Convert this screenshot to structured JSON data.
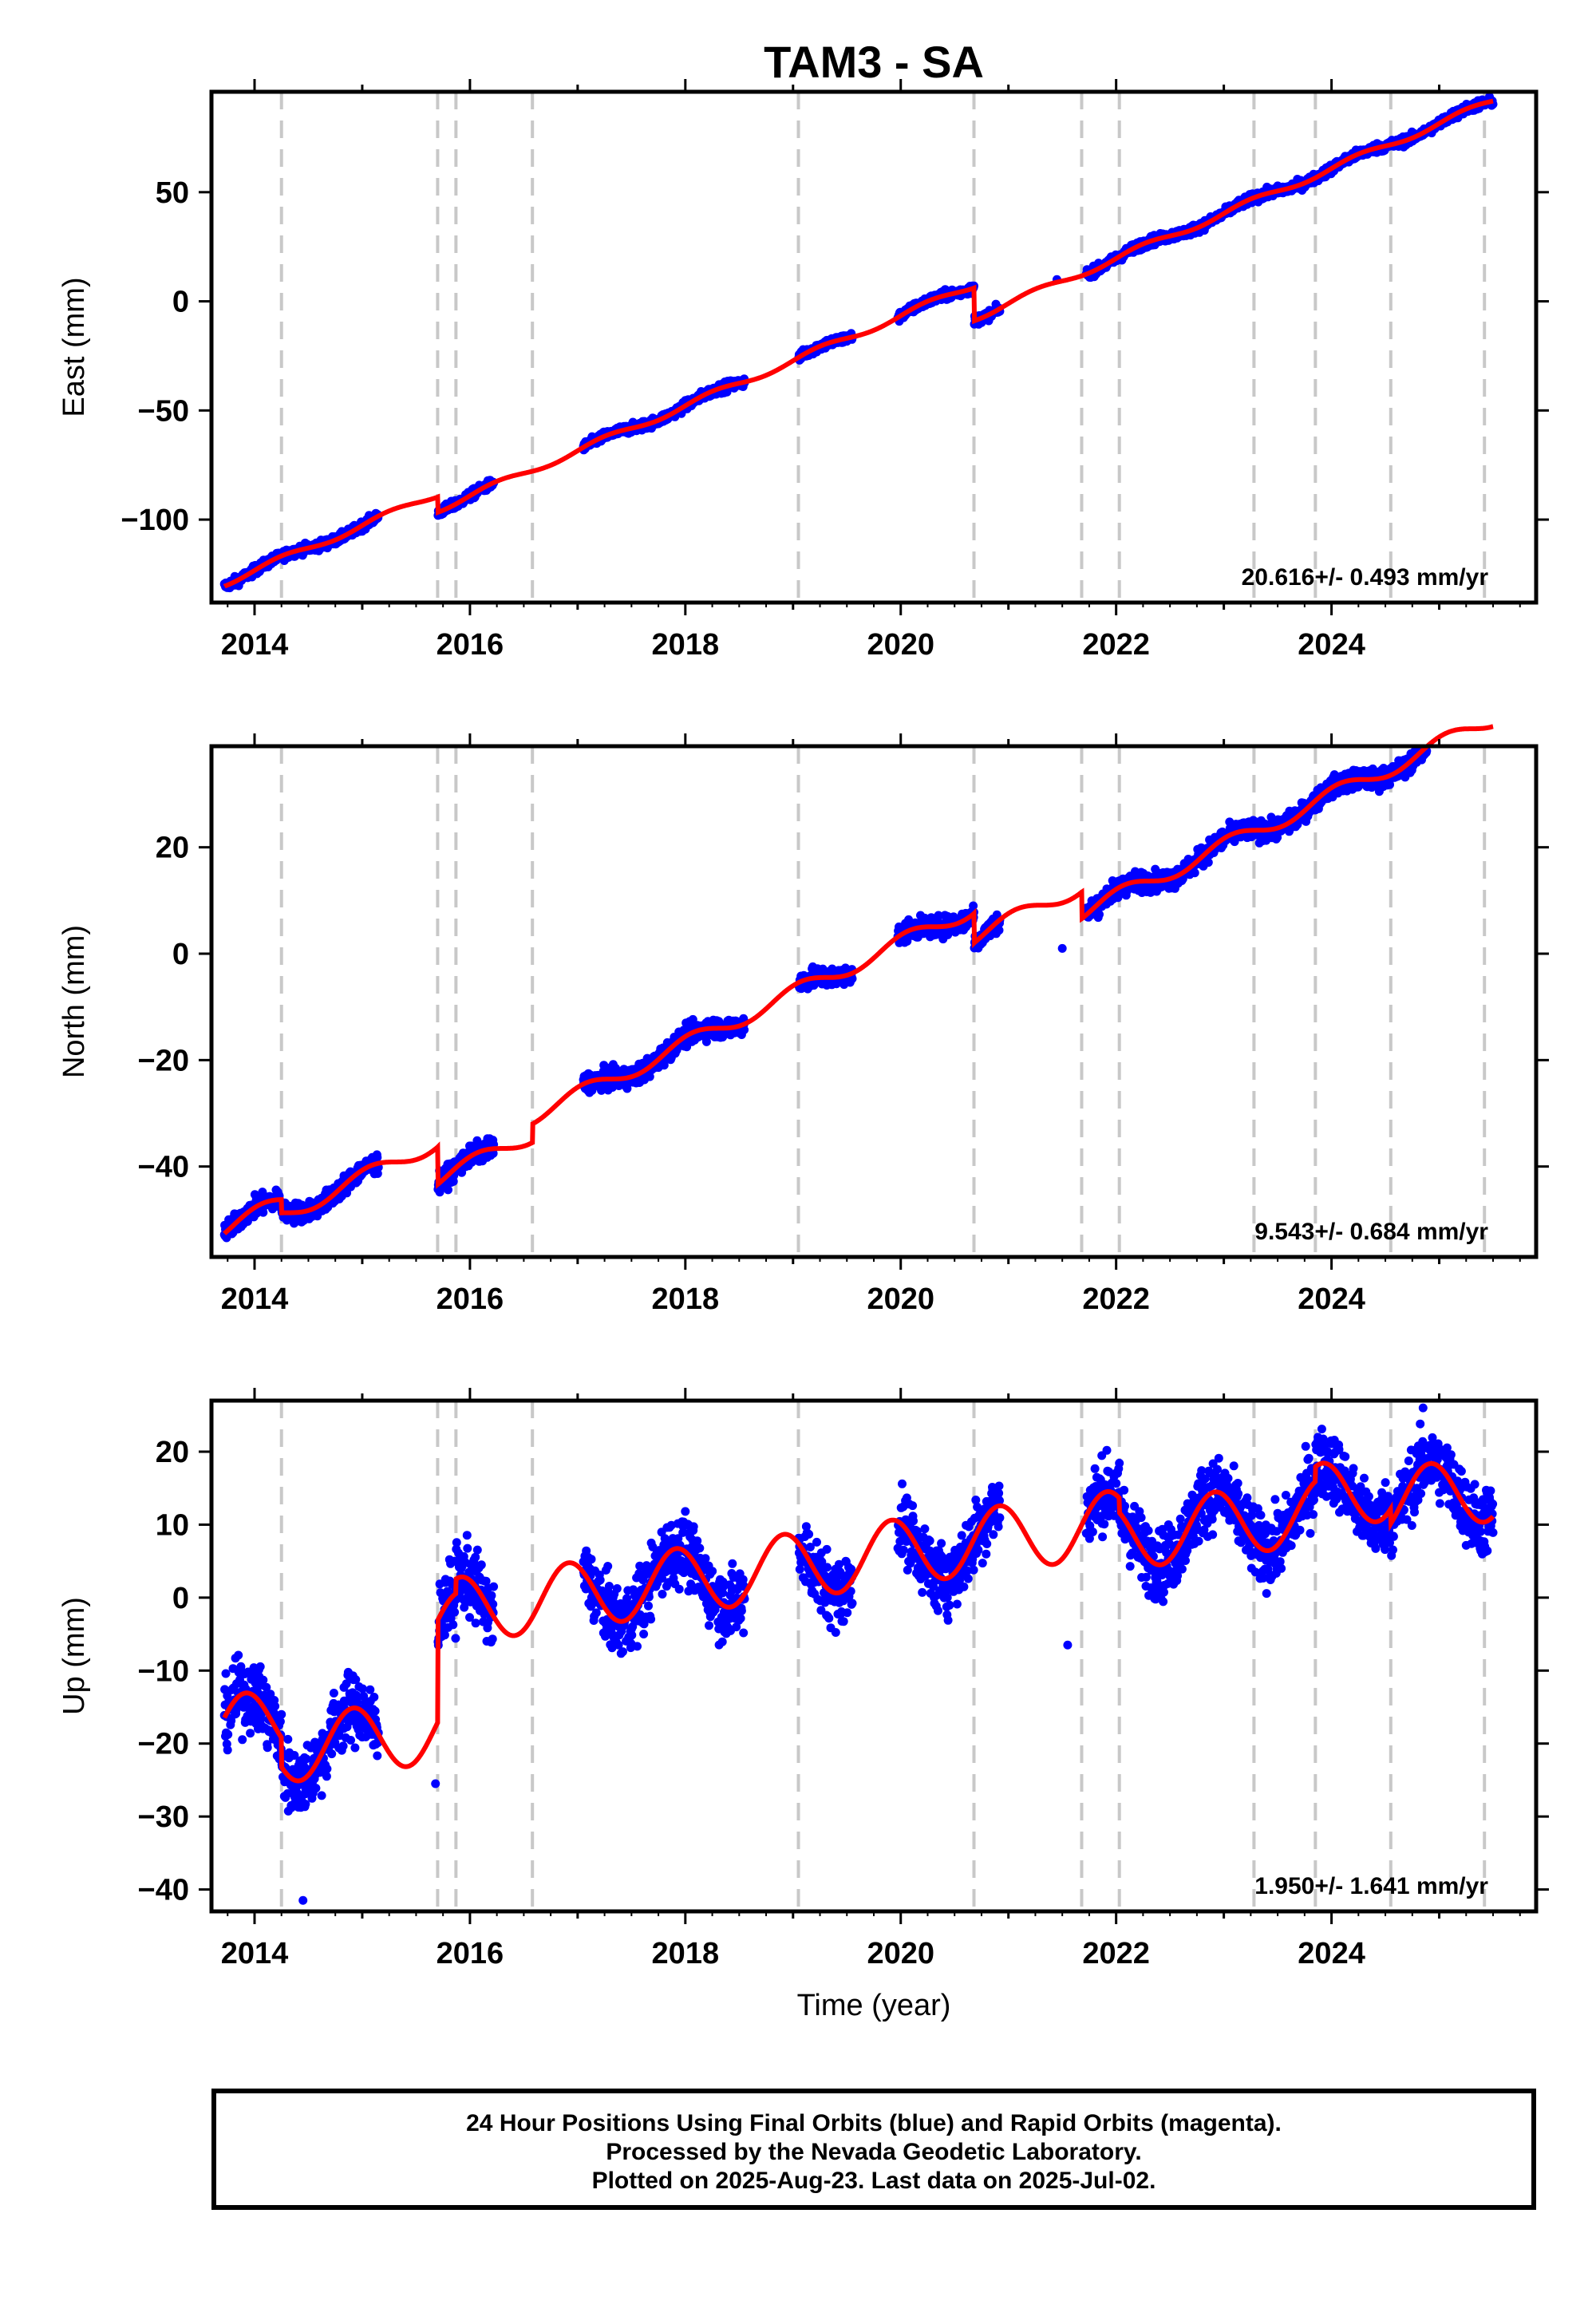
{
  "chart_data": {
    "title": "TAM3 - SA",
    "type": "scatter",
    "xlabel": "Time (year)",
    "xlim": [
      2013.6,
      2025.9
    ],
    "x_ticks": [
      2014,
      2016,
      2018,
      2020,
      2022,
      2024
    ],
    "x_tick_labels": [
      "2014",
      "2016",
      "2018",
      "2020",
      "2022",
      "2024"
    ],
    "event_lines": [
      2014.25,
      2015.7,
      2015.87,
      2016.58,
      2019.05,
      2020.68,
      2021.68,
      2022.03,
      2023.28,
      2023.85,
      2024.55,
      2025.42
    ],
    "data_gaps": [
      [
        2015.15,
        2015.7
      ],
      [
        2016.22,
        2017.05
      ],
      [
        2018.55,
        2019.05
      ],
      [
        2019.55,
        2019.97
      ],
      [
        2020.92,
        2021.72
      ]
    ],
    "series_legend": [
      "Final Orbits (blue)",
      "Rapid Orbits (magenta)"
    ],
    "colors": {
      "final_orbits": "#0000ff",
      "fit": "#ff0000",
      "event_line": "#c8c8c8",
      "axes": "#000000"
    },
    "panels": [
      {
        "name": "east",
        "ylabel": "East (mm)",
        "ylim": [
          -138,
          96
        ],
        "y_ticks": [
          50,
          0,
          -50,
          -100
        ],
        "y_tick_labels": [
          "50",
          "0",
          "−50",
          "−100"
        ],
        "rate_label": "20.616+/- 0.493 mm/yr",
        "trend": {
          "x0": 2013.7,
          "y0": -129.5,
          "rate": 20.616
        },
        "offsets": [
          [
            2015.7,
            -7.0
          ],
          [
            2020.68,
            -15.0
          ]
        ],
        "seasonal": {
          "amplitude": 1.5,
          "phase": 0.0
        },
        "noise": 1.5,
        "outliers": [
          [
            2021.45,
            10
          ]
        ]
      },
      {
        "name": "north",
        "ylabel": "North (mm)",
        "ylim": [
          -57,
          39
        ],
        "y_ticks": [
          20,
          0,
          -20,
          -40
        ],
        "y_tick_labels": [
          "20",
          "0",
          "−20",
          "−40"
        ],
        "rate_label": "9.543+/- 0.684 mm/yr",
        "trend": {
          "x0": 2013.7,
          "y0": -52.0,
          "rate": 9.543
        },
        "offsets": [
          [
            2014.25,
            -2.5
          ],
          [
            2015.7,
            -7.0
          ],
          [
            2016.58,
            3.5
          ],
          [
            2020.68,
            -5.5
          ],
          [
            2021.68,
            -5.0
          ]
        ],
        "seasonal": {
          "amplitude": 1.5,
          "phase": 1.2
        },
        "noise": 1.3,
        "outliers": [
          [
            2021.5,
            1
          ]
        ]
      },
      {
        "name": "up",
        "ylabel": "Up (mm)",
        "ylim": [
          -43,
          27
        ],
        "y_ticks": [
          20,
          10,
          0,
          -10,
          -20,
          -30,
          -40
        ],
        "y_tick_labels": [
          "20",
          "10",
          "0",
          "−10",
          "−20",
          "−30",
          "−40"
        ],
        "rate_label": "1.950+/- 1.641 mm/yr",
        "trend": {
          "x0": 2013.7,
          "y0": -18.0,
          "rate": 1.95
        },
        "offsets": [
          [
            2014.25,
            -4.0
          ],
          [
            2015.7,
            14.0
          ],
          [
            2015.87,
            2.0
          ],
          [
            2022.03,
            -2.0
          ],
          [
            2023.85,
            2.0
          ],
          [
            2024.55,
            -2.0
          ]
        ],
        "seasonal": {
          "amplitude": 4.5,
          "phase": 2.1
        },
        "noise": 3.3,
        "outliers": [
          [
            2015.68,
            -25.5
          ],
          [
            2021.55,
            -6.5
          ],
          [
            2014.45,
            -41.5
          ],
          [
            2024.85,
            26
          ]
        ]
      }
    ]
  },
  "footer": {
    "line1": "24 Hour Positions Using Final Orbits (blue) and Rapid Orbits (magenta).",
    "line2": "Processed by the Nevada Geodetic Laboratory.",
    "line3": "Plotted on 2025-Aug-23. Last data on 2025-Jul-02."
  }
}
